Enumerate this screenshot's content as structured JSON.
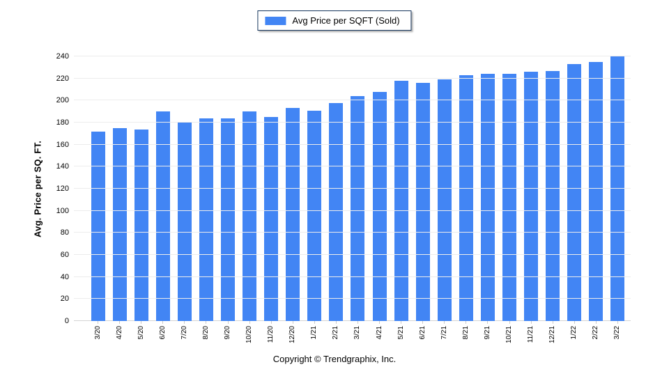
{
  "legend": {
    "label": "Avg Price per SQFT (Sold)"
  },
  "footer": {
    "text": "Copyright © Trendgraphix, Inc."
  },
  "chart_data": {
    "type": "bar",
    "title": "",
    "series_name": "Avg Price per SQFT (Sold)",
    "categories": [
      "3/20",
      "4/20",
      "5/20",
      "6/20",
      "7/20",
      "8/20",
      "9/20",
      "10/20",
      "11/20",
      "12/20",
      "1/21",
      "2/21",
      "3/21",
      "4/21",
      "5/21",
      "6/21",
      "7/21",
      "8/21",
      "9/21",
      "10/21",
      "11/21",
      "12/21",
      "1/22",
      "2/22",
      "3/22"
    ],
    "values": [
      172,
      175,
      174,
      190,
      180,
      184,
      184,
      190,
      185,
      193,
      191,
      198,
      204,
      208,
      218,
      216,
      219,
      223,
      224,
      224,
      226,
      227,
      233,
      235,
      240
    ],
    "xlabel": "",
    "ylabel": "Avg. Price per SQ. FT.",
    "y_min": 0,
    "y_max": 240,
    "y_step": 20,
    "ylim": [
      0,
      240
    ],
    "grid": true,
    "legend_position": "top-center",
    "bar_color": "#4285F4",
    "gridline_color": "#ECECEC",
    "legend_border_color": "#17375E"
  }
}
